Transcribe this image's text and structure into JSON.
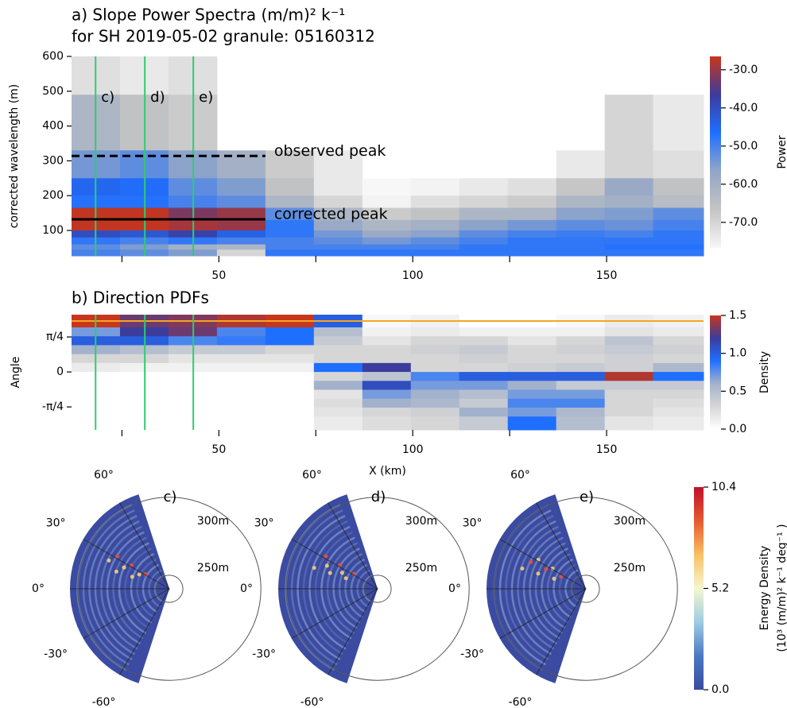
{
  "chart_data": [
    {
      "type": "heatmap",
      "title": "a) Slope Power Spectra (m/m)² k⁻¹",
      "subtitle": "for SH 2019-05-02 granule: 05160312",
      "ylabel": "corrected wavelength (m)",
      "xlim": [
        12,
        175
      ],
      "xticks": [
        50,
        100,
        150
      ],
      "xminor_ticks": [
        25,
        75,
        125
      ],
      "ylim": [
        27,
        600
      ],
      "yticks": [
        100,
        200,
        300,
        400,
        500,
        600
      ],
      "x_edges": [
        12,
        24.5,
        37,
        49.5,
        62,
        74.5,
        87,
        99.5,
        112,
        124.5,
        137,
        149.5,
        162,
        175
      ],
      "y_edges": [
        600,
        490,
        330,
        250,
        200,
        165,
        130,
        100,
        80,
        60,
        45,
        27
      ],
      "values": [
        [
          -72,
          -74,
          -72,
          null,
          null,
          null,
          null,
          null,
          null,
          null,
          null,
          null,
          null
        ],
        [
          -62,
          -66,
          -68,
          null,
          null,
          null,
          null,
          null,
          null,
          null,
          null,
          -70,
          -74
        ],
        [
          -54,
          -52,
          -56,
          -60,
          -68,
          -74,
          null,
          null,
          null,
          null,
          -74,
          -70,
          -72
        ],
        [
          -45,
          -46,
          -52,
          -55,
          -66,
          -74,
          -78,
          -76,
          -74,
          -72,
          -67,
          -58,
          -66
        ],
        [
          -47,
          -47,
          -50,
          -52,
          -62,
          -70,
          -76,
          -72,
          -70,
          -68,
          -62,
          -60,
          -64
        ],
        [
          -27,
          -27,
          -32,
          -30,
          -52,
          -62,
          -68,
          -66,
          -62,
          -62,
          -56,
          -55,
          -52
        ],
        [
          -27,
          -27,
          -29,
          -30,
          -48,
          -58,
          -62,
          -60,
          -56,
          -54,
          -52,
          -53,
          -50
        ],
        [
          -40,
          -42,
          -38,
          -44,
          -48,
          -54,
          -58,
          -56,
          -52,
          -50,
          -49,
          -50,
          -48
        ],
        [
          -48,
          -50,
          -48,
          -50,
          -50,
          -52,
          -54,
          -52,
          -50,
          -48,
          -48,
          -48,
          -48
        ],
        [
          -52,
          -55,
          -60,
          -62,
          -50,
          -50,
          -50,
          -50,
          -48,
          -48,
          -48,
          -47,
          -47
        ],
        [
          -50,
          -52,
          -55,
          -70,
          -48,
          -48,
          -48,
          -48,
          -48,
          -48,
          -48,
          -48,
          -48
        ]
      ],
      "zlim": [
        -76.7,
        -26.5
      ],
      "colormap": [
        "#f7f7f7",
        "#c4c4c4",
        "#93a6c6",
        "#1f6fff",
        "#3c3c9c",
        "#c8361c"
      ],
      "colorbar_label": "Power",
      "colorbar_ticks": [
        {
          "value": -30,
          "label": "-30.0"
        },
        {
          "value": -40,
          "label": "-40.0"
        },
        {
          "value": -50,
          "label": "-50.0"
        },
        {
          "value": -60,
          "label": "-60.0"
        },
        {
          "value": -70,
          "label": "-70.0"
        }
      ],
      "lines": [
        {
          "name": "observed peak",
          "y": 314,
          "x": [
            12,
            62
          ],
          "style": "dashed"
        },
        {
          "name": "corrected peak",
          "y": 132,
          "x": [
            12,
            62
          ],
          "style": "solid"
        }
      ],
      "markers": [
        {
          "label": "c)",
          "x": 18.2
        },
        {
          "label": "d)",
          "x": 30.9
        },
        {
          "label": "e)",
          "x": 43.4
        }
      ],
      "marker_color": "#2ecc71"
    },
    {
      "type": "heatmap",
      "title": "b) Direction PDFs",
      "ylabel": "Angle",
      "xlabel": "X (km)",
      "xlim": [
        12,
        175
      ],
      "xticks": [
        50,
        100,
        150
      ],
      "xminor_ticks": [
        25,
        75,
        125
      ],
      "ylim": [
        -1.3,
        1.285
      ],
      "yticks": [
        {
          "value": 0.785,
          "label": "π/4"
        },
        0,
        {
          "value": -0.785,
          "label": "-π/4"
        }
      ],
      "x_edges": [
        12,
        24.5,
        37,
        49.5,
        62,
        74.5,
        87,
        99.5,
        112,
        124.5,
        137,
        149.5,
        162,
        175
      ],
      "y_edges": [
        1.285,
        1.0,
        0.8,
        0.6,
        0.4,
        0.2,
        0,
        -0.2,
        -0.4,
        -0.6,
        -0.8,
        -1.0,
        -1.3
      ],
      "values": [
        [
          1.5,
          1.3,
          1.35,
          1.45,
          1.5,
          1.0,
          0.05,
          0.1,
          0,
          0,
          0.05,
          0.15,
          0.1
        ],
        [
          0.7,
          1.2,
          1.3,
          0.8,
          0.9,
          0.5,
          0.1,
          0.15,
          0.1,
          0.1,
          0.1,
          0.2,
          0.15
        ],
        [
          1.0,
          1.0,
          0.8,
          0.85,
          0.9,
          0.4,
          0.2,
          0.3,
          0.3,
          0.2,
          0.3,
          0.45,
          0.3
        ],
        [
          0.6,
          0.5,
          0.4,
          0.4,
          0.3,
          0.3,
          0.3,
          0.35,
          0.4,
          0.3,
          0.35,
          0.4,
          0.35
        ],
        [
          0.3,
          0.3,
          0.2,
          0.2,
          0.2,
          0.3,
          0.3,
          0.3,
          0.35,
          0.3,
          0.3,
          0.35,
          0.3
        ],
        [
          0.15,
          0.1,
          0.1,
          0.1,
          0.1,
          0.9,
          1.2,
          0.3,
          0.3,
          0.35,
          0.4,
          0.35,
          0.55
        ],
        [
          0,
          0,
          0,
          0,
          0,
          0.3,
          0.45,
          0.8,
          1.0,
          1.0,
          1.0,
          1.45,
          0.9
        ],
        [
          0,
          0,
          0,
          0,
          0,
          0.6,
          1.1,
          0.7,
          0.7,
          0.6,
          0.4,
          0.4,
          0.4
        ],
        [
          0,
          0,
          0,
          0,
          0,
          0.2,
          0.7,
          0.6,
          0.5,
          0.7,
          0.7,
          0.3,
          0.3
        ],
        [
          0,
          0,
          0,
          0,
          0,
          0.25,
          0.6,
          0.55,
          0.4,
          0.8,
          0.8,
          0.3,
          0.25
        ],
        [
          0,
          0,
          0,
          0,
          0,
          0.2,
          0.3,
          0.35,
          0.6,
          0.7,
          0.55,
          0.3,
          0.2
        ],
        [
          0,
          0,
          0,
          0,
          0,
          0.15,
          0.25,
          0.3,
          0.4,
          0.9,
          0.5,
          0.2,
          0.15
        ]
      ],
      "zlim": [
        0,
        1.5
      ],
      "colormap": [
        "#ffffff",
        "#d6d6d6",
        "#a3b2cc",
        "#1f6fff",
        "#3c3c9c",
        "#c8361c"
      ],
      "colorbar_label": "Density",
      "colorbar_ticks": [
        {
          "value": 0,
          "label": "0.0"
        },
        {
          "value": 0.5,
          "label": "0.5"
        },
        {
          "value": 1,
          "label": "1.0"
        },
        {
          "value": 1.5,
          "label": "1.5"
        }
      ],
      "vlines": [
        18.2,
        30.9,
        43.4
      ],
      "vline_color": "#2ecc71",
      "hline": 1.142,
      "hline_color": "#f5a623"
    },
    {
      "type": "polar",
      "label": "c)",
      "label_color": "#2ecc71",
      "color": "#3b4ba1",
      "thetalim": [
        -72,
        72
      ],
      "rlim": [
        241.3,
        305
      ],
      "thetaticks": [
        {
          "value": 60,
          "label": "60°"
        },
        {
          "value": 30,
          "label": "30°"
        },
        {
          "value": 0,
          "label": "0°"
        },
        {
          "value": -30,
          "label": "-30°"
        },
        {
          "value": -60,
          "label": "-60°"
        }
      ],
      "rticks": [
        {
          "value": 250,
          "label": "250m"
        },
        {
          "value": 300,
          "label": "300m"
        }
      ]
    },
    {
      "type": "polar",
      "label": "d)",
      "label_color": "#2ecc71",
      "color": "#3b4ba1",
      "thetalim": [
        -72,
        72
      ],
      "rlim": [
        241.3,
        305
      ],
      "thetaticks": [
        {
          "value": 60,
          "label": "60°"
        },
        {
          "value": 30,
          "label": "30°"
        },
        {
          "value": 0,
          "label": "0°"
        },
        {
          "value": -30,
          "label": "-30°"
        },
        {
          "value": -60,
          "label": "-60°"
        }
      ],
      "rticks": [
        {
          "value": 250,
          "label": "250m"
        },
        {
          "value": 300,
          "label": "300m"
        }
      ]
    },
    {
      "type": "polar",
      "label": "e)",
      "label_color": "#2ecc71",
      "color": "#3b4ba1",
      "thetalim": [
        -72,
        72
      ],
      "rlim": [
        241.3,
        305
      ],
      "thetaticks": [
        {
          "value": 60,
          "label": "60°"
        },
        {
          "value": 30,
          "label": "30°"
        },
        {
          "value": 0,
          "label": "0°"
        },
        {
          "value": -30,
          "label": "-30°"
        },
        {
          "value": -60,
          "label": "-60°"
        }
      ],
      "rticks": [
        {
          "value": 250,
          "label": "250m"
        },
        {
          "value": 300,
          "label": "300m"
        }
      ]
    },
    {
      "type": "colorbar",
      "label": [
        "Energy Density",
        "(10³ (m/m)² k⁻¹ deg⁻¹ )"
      ],
      "zlim": [
        0,
        10.4
      ],
      "ticks": [
        {
          "value": 0,
          "label": "0.0"
        },
        {
          "value": 5.2,
          "label": "5.2"
        },
        {
          "value": 10.4,
          "label": "10.4"
        }
      ],
      "colormap": [
        "#3a4aa0",
        "#4a7ac2",
        "#9fcbe2",
        "#f4f7cf",
        "#f9c063",
        "#e65a30",
        "#c0102a"
      ]
    }
  ]
}
